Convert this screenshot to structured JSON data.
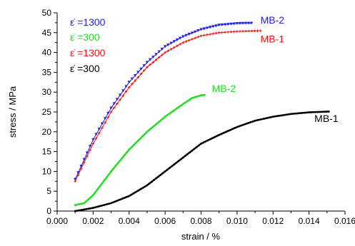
{
  "chart_data": {
    "type": "scatter",
    "xlabel": "strain / %",
    "ylabel": "stress / MPa",
    "xlim": [
      0.0,
      0.016
    ],
    "ylim": [
      0,
      50
    ],
    "xticks": [
      "0.000",
      "0.002",
      "0.004",
      "0.006",
      "0.008",
      "0.010",
      "0.012",
      "0.014",
      "0.016"
    ],
    "yticks": [
      "0",
      "5",
      "10",
      "15",
      "20",
      "25",
      "30",
      "35",
      "40",
      "45",
      "50"
    ],
    "grid": false,
    "legend_position": "top-left",
    "legend": [
      {
        "label": "ε̇ =1300",
        "color": "#2020e0"
      },
      {
        "label": "ε̇ =300",
        "color": "#22dd22"
      },
      {
        "label": "ε̇ =1300",
        "color": "#ee1111"
      },
      {
        "label": "ε̇ =300",
        "color": "#000000"
      }
    ],
    "series": [
      {
        "color": "#2020e0",
        "marker": "triangle-down",
        "x": [
          0.001,
          0.002,
          0.003,
          0.004,
          0.005,
          0.006,
          0.007,
          0.008,
          0.009,
          0.01,
          0.0108
        ],
        "y": [
          8.0,
          18.0,
          26.0,
          32.5,
          37.5,
          41.5,
          44.0,
          45.8,
          46.9,
          47.3,
          47.4
        ]
      },
      {
        "color": "#ee1111",
        "marker": "plus",
        "x": [
          0.001,
          0.002,
          0.003,
          0.004,
          0.005,
          0.006,
          0.007,
          0.008,
          0.009,
          0.01,
          0.0113
        ],
        "y": [
          7.5,
          17.0,
          25.0,
          31.2,
          36.3,
          40.0,
          42.5,
          44.2,
          45.0,
          45.3,
          45.5
        ]
      },
      {
        "color": "#22dd22",
        "marker": "dot",
        "x": [
          0.001,
          0.0015,
          0.002,
          0.003,
          0.004,
          0.005,
          0.006,
          0.007,
          0.0075,
          0.008,
          0.0082
        ],
        "y": [
          1.5,
          2.0,
          4.0,
          10.0,
          15.5,
          20.0,
          23.8,
          27.0,
          28.5,
          29.2,
          29.3
        ]
      },
      {
        "color": "#000000",
        "marker": "dot",
        "x": [
          0.001,
          0.002,
          0.003,
          0.004,
          0.005,
          0.006,
          0.007,
          0.008,
          0.009,
          0.01,
          0.011,
          0.012,
          0.013,
          0.014,
          0.0151
        ],
        "y": [
          0.0,
          0.8,
          2.0,
          3.8,
          6.5,
          10.0,
          13.5,
          17.0,
          19.2,
          21.2,
          22.8,
          23.8,
          24.5,
          24.9,
          25.1
        ]
      }
    ],
    "annotations": [
      {
        "text": "MB-2",
        "x": 0.0113,
        "y": 47.3,
        "color": "#2020e0"
      },
      {
        "text": "MB-1",
        "x": 0.0113,
        "y": 42.5,
        "color": "#ee1111"
      },
      {
        "text": "MB-2",
        "x": 0.0086,
        "y": 30.0,
        "color": "#22dd22"
      },
      {
        "text": "MB-1",
        "x": 0.0143,
        "y": 22.5,
        "color": "#000000"
      }
    ]
  }
}
